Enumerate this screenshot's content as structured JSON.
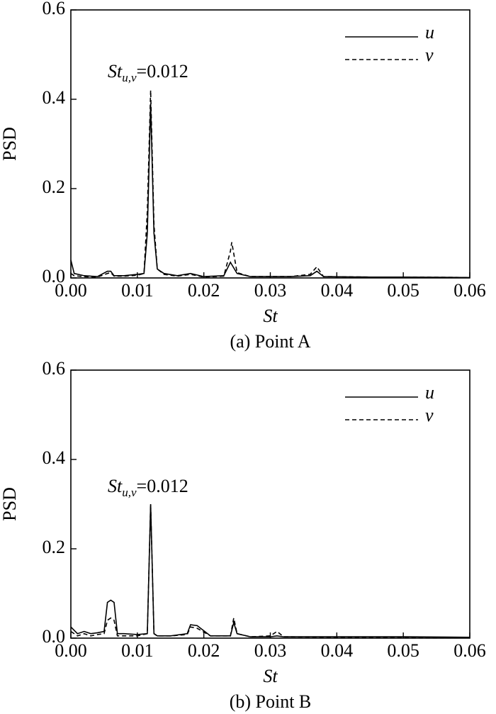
{
  "chart_data": [
    {
      "type": "line",
      "caption": "(a) Point A",
      "xlabel": "St",
      "ylabel": "PSD",
      "annotation": {
        "main": "St",
        "sub": "u,v",
        "rest": "=0.012"
      },
      "xlim": [
        0,
        0.06
      ],
      "ylim": [
        0,
        0.6
      ],
      "xticks": [
        {
          "value": 0,
          "label": "0.00"
        },
        {
          "value": 0.01,
          "label": "0.01"
        },
        {
          "value": 0.02,
          "label": "0.02"
        },
        {
          "value": 0.03,
          "label": "0.03"
        },
        {
          "value": 0.04,
          "label": "0.04"
        },
        {
          "value": 0.05,
          "label": "0.05"
        },
        {
          "value": 0.06,
          "label": "0.06"
        }
      ],
      "yticks": [
        {
          "value": 0,
          "label": "0.0"
        },
        0.2,
        0.4,
        0.6
      ],
      "legend": "upper right",
      "x": [
        0,
        0.0005,
        0.002,
        0.004,
        0.0055,
        0.006,
        0.0065,
        0.008,
        0.01,
        0.011,
        0.0115,
        0.012,
        0.0125,
        0.013,
        0.014,
        0.016,
        0.018,
        0.02,
        0.023,
        0.024,
        0.0242,
        0.025,
        0.027,
        0.03,
        0.033,
        0.036,
        0.037,
        0.038,
        0.045,
        0.05,
        0.06
      ],
      "series": [
        {
          "name": "u",
          "color": "#000000",
          "dash": "solid",
          "values": [
            0.04,
            0.01,
            0.005,
            0.003,
            0.015,
            0.015,
            0.005,
            0.005,
            0.008,
            0.01,
            0.1,
            0.39,
            0.1,
            0.02,
            0.01,
            0.005,
            0.01,
            0.003,
            0.005,
            0.035,
            0.03,
            0.01,
            0.003,
            0.003,
            0.003,
            0.005,
            0.015,
            0.003,
            0.002,
            0.002,
            0.001
          ]
        },
        {
          "name": "v",
          "color": "#000000",
          "dash": "dashed",
          "values": [
            0.01,
            0.005,
            0.003,
            0.002,
            0.01,
            0.012,
            0.004,
            0.004,
            0.006,
            0.01,
            0.15,
            0.42,
            0.12,
            0.02,
            0.008,
            0.004,
            0.008,
            0.002,
            0.004,
            0.06,
            0.08,
            0.012,
            0.003,
            0.003,
            0.003,
            0.008,
            0.025,
            0.003,
            0.002,
            0.002,
            0.001
          ]
        }
      ]
    },
    {
      "type": "line",
      "caption": "(b) Point B",
      "xlabel": "St",
      "ylabel": "PSD",
      "annotation": {
        "main": "St",
        "sub": "u,v",
        "rest": "=0.012"
      },
      "xlim": [
        0,
        0.06
      ],
      "ylim": [
        0,
        0.6
      ],
      "xticks": [
        {
          "value": 0,
          "label": "0.00"
        },
        {
          "value": 0.01,
          "label": "0.01"
        },
        {
          "value": 0.02,
          "label": "0.02"
        },
        {
          "value": 0.03,
          "label": "0.03"
        },
        {
          "value": 0.04,
          "label": "0.04"
        },
        {
          "value": 0.05,
          "label": "0.05"
        },
        {
          "value": 0.06,
          "label": "0.06"
        }
      ],
      "yticks": [
        {
          "value": 0,
          "label": "0.0"
        },
        0.2,
        0.4,
        0.6
      ],
      "legend": "upper right",
      "x": [
        0,
        0.001,
        0.002,
        0.003,
        0.004,
        0.005,
        0.0055,
        0.006,
        0.0065,
        0.007,
        0.008,
        0.01,
        0.0115,
        0.012,
        0.0125,
        0.013,
        0.015,
        0.0175,
        0.018,
        0.019,
        0.021,
        0.024,
        0.0245,
        0.025,
        0.027,
        0.03,
        0.031,
        0.032,
        0.04,
        0.05,
        0.06
      ],
      "series": [
        {
          "name": "u",
          "color": "#000000",
          "dash": "solid",
          "values": [
            0.025,
            0.01,
            0.015,
            0.01,
            0.012,
            0.015,
            0.08,
            0.085,
            0.08,
            0.01,
            0.01,
            0.008,
            0.01,
            0.3,
            0.01,
            0.005,
            0.005,
            0.01,
            0.03,
            0.028,
            0.005,
            0.005,
            0.035,
            0.01,
            0.003,
            0.003,
            0.005,
            0.003,
            0.003,
            0.003,
            0.002
          ]
        },
        {
          "name": "v",
          "color": "#000000",
          "dash": "dashed",
          "values": [
            0.015,
            0.005,
            0.01,
            0.005,
            0.008,
            0.01,
            0.04,
            0.045,
            0.04,
            0.005,
            0.005,
            0.005,
            0.01,
            0.3,
            0.01,
            0.005,
            0.005,
            0.008,
            0.025,
            0.022,
            0.005,
            0.005,
            0.045,
            0.01,
            0.003,
            0.005,
            0.015,
            0.003,
            0.002,
            0.002,
            0.001
          ]
        }
      ]
    }
  ]
}
